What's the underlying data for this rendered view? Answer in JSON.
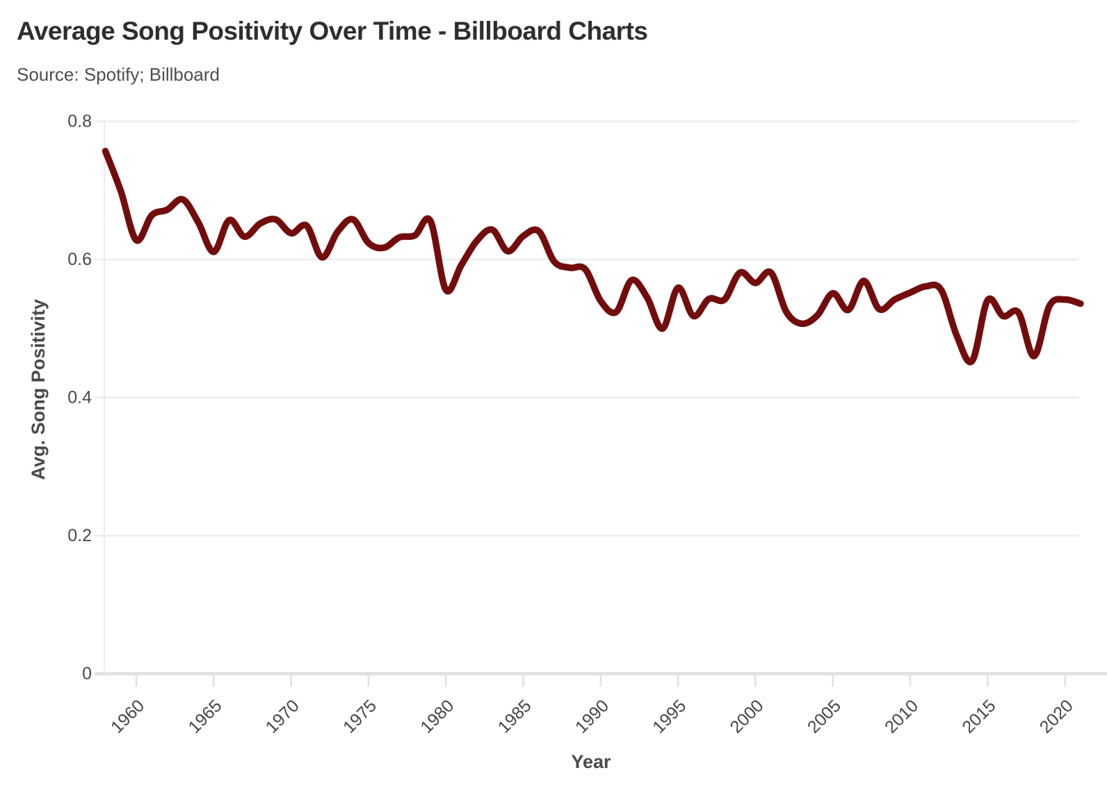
{
  "header": {
    "title": "Average Song Positivity Over Time - Billboard Charts",
    "source": "Source: Spotify; Billboard"
  },
  "chart_data": {
    "type": "line",
    "title": "Average Song Positivity Over Time - Billboard Charts",
    "source": "Source: Spotify; Billboard",
    "xlabel": "Year",
    "ylabel": "Avg. Song Positivity",
    "x": [
      1958,
      1959,
      1960,
      1961,
      1962,
      1963,
      1964,
      1965,
      1966,
      1967,
      1968,
      1969,
      1970,
      1971,
      1972,
      1973,
      1974,
      1975,
      1976,
      1977,
      1978,
      1979,
      1980,
      1981,
      1982,
      1983,
      1984,
      1985,
      1986,
      1987,
      1988,
      1989,
      1990,
      1991,
      1992,
      1993,
      1994,
      1995,
      1996,
      1997,
      1998,
      1999,
      2000,
      2001,
      2002,
      2003,
      2004,
      2005,
      2006,
      2007,
      2008,
      2009,
      2010,
      2011,
      2012,
      2013,
      2014,
      2015,
      2016,
      2017,
      2018,
      2019,
      2020,
      2021
    ],
    "values": [
      0.757,
      0.699,
      0.628,
      0.664,
      0.672,
      0.687,
      0.654,
      0.611,
      0.657,
      0.633,
      0.652,
      0.658,
      0.638,
      0.649,
      0.603,
      0.64,
      0.658,
      0.624,
      0.617,
      0.632,
      0.635,
      0.656,
      0.556,
      0.592,
      0.627,
      0.643,
      0.612,
      0.634,
      0.641,
      0.597,
      0.588,
      0.586,
      0.54,
      0.524,
      0.57,
      0.545,
      0.5,
      0.559,
      0.518,
      0.543,
      0.542,
      0.581,
      0.566,
      0.581,
      0.524,
      0.507,
      0.519,
      0.551,
      0.527,
      0.569,
      0.528,
      0.542,
      0.552,
      0.561,
      0.556,
      0.49,
      0.453,
      0.541,
      0.518,
      0.523,
      0.46,
      0.533,
      0.542,
      0.536
    ],
    "ylim": [
      0,
      0.8
    ],
    "yticks": [
      0,
      0.2,
      0.4,
      0.6,
      0.8
    ],
    "xticks": [
      1960,
      1965,
      1970,
      1975,
      1980,
      1985,
      1990,
      1995,
      2000,
      2005,
      2010,
      2015,
      2020
    ],
    "grid": "horizontal",
    "legend": "none",
    "line_color": "#730d0d",
    "line_width": 9.5,
    "grid_color": "#ececec",
    "baseline_color": "#e2e2e2",
    "tick_color": "#e0e0e0"
  }
}
